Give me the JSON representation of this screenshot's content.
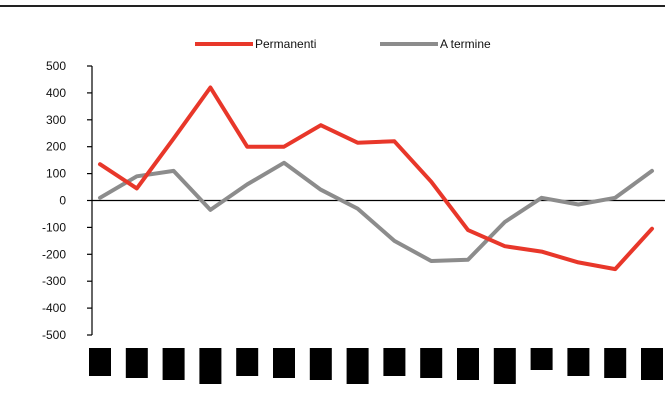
{
  "chart_data": {
    "type": "line",
    "title": "",
    "xlabel": "",
    "ylabel": "",
    "ylim": [
      -500,
      500
    ],
    "yticks": [
      500,
      400,
      300,
      200,
      100,
      0,
      -100,
      -200,
      -300,
      -400,
      -500
    ],
    "ytick_labels": [
      "500",
      "400",
      "300",
      "200",
      "100",
      "0",
      "-100",
      "-200",
      "-300",
      "-400",
      "-500"
    ],
    "legend_position": "top-center",
    "grid": false,
    "x_points": 16,
    "series": [
      {
        "name": "Permanenti",
        "color": "#e8372a",
        "values": [
          135,
          45,
          230,
          420,
          200,
          200,
          280,
          215,
          220,
          70,
          -110,
          -170,
          -190,
          -230,
          -255,
          -105
        ]
      },
      {
        "name": "A termine",
        "color": "#8c8c8c",
        "values": [
          10,
          90,
          110,
          -35,
          60,
          140,
          40,
          -30,
          -150,
          -225,
          -220,
          -80,
          10,
          -15,
          10,
          110
        ]
      }
    ],
    "x_label_area": "redacted"
  }
}
